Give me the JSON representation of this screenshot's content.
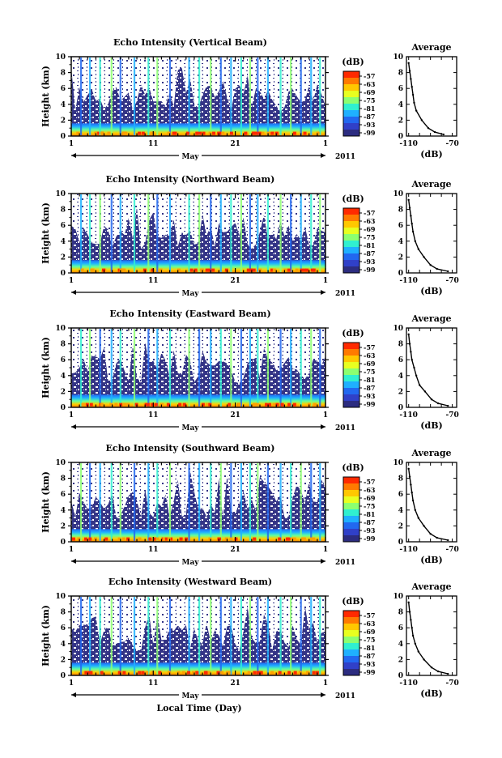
{
  "figure": {
    "bottom_xlabel": "Local Time (Day)",
    "year": "2011",
    "month": "May"
  },
  "colorbar": {
    "unit": "(dB)",
    "ticks": [
      "-57",
      "-63",
      "-69",
      "-75",
      "-81",
      "-87",
      "-93",
      "-99"
    ],
    "colors": [
      "#ff2a00",
      "#ff7a00",
      "#ffc800",
      "#e8ff20",
      "#8cff70",
      "#30f0d0",
      "#1fb0ff",
      "#2268f0",
      "#3040c8",
      "#2c2c80"
    ]
  },
  "chart_data": [
    {
      "type": "heatmap",
      "title": "Echo Intensity (Vertical Beam)",
      "ylabel": "Height (km)",
      "xlabel": "May",
      "x_ticks": [
        "1",
        "11",
        "21",
        "1"
      ],
      "y_ticks": [
        "0",
        "2",
        "4",
        "6",
        "8",
        "10"
      ],
      "xlim": [
        1,
        32
      ],
      "ylim": [
        0,
        10
      ],
      "average_profile": {
        "title": "Average",
        "xlabel": "(dB)",
        "x_ticks": [
          "-110",
          "-70"
        ],
        "y_ticks": [
          "0",
          "2",
          "4",
          "6",
          "8",
          "10"
        ],
        "xlim": [
          -112,
          -66
        ],
        "ylim": [
          0,
          10
        ],
        "points": [
          [
            -78,
            0.2
          ],
          [
            -86,
            0.5
          ],
          [
            -92,
            1.0
          ],
          [
            -98,
            2.0
          ],
          [
            -103,
            3.2
          ],
          [
            -105,
            4.2
          ],
          [
            -106,
            5.2
          ],
          [
            -107,
            6.2
          ],
          [
            -108,
            7.2
          ],
          [
            -109,
            8.2
          ],
          [
            -110,
            9.2
          ]
        ]
      }
    },
    {
      "type": "heatmap",
      "title": "Echo Intensity (Northward Beam)",
      "ylabel": "Height (km)",
      "xlabel": "May",
      "x_ticks": [
        "1",
        "11",
        "21",
        "1"
      ],
      "y_ticks": [
        "0",
        "2",
        "4",
        "6",
        "8",
        "10"
      ],
      "xlim": [
        1,
        32
      ],
      "ylim": [
        0,
        10
      ],
      "average_profile": {
        "title": "Average",
        "xlabel": "(dB)",
        "x_ticks": [
          "-110",
          "-70"
        ],
        "y_ticks": [
          "0",
          "2",
          "4",
          "6",
          "8",
          "10"
        ],
        "xlim": [
          -112,
          -66
        ],
        "ylim": [
          0,
          10
        ],
        "points": [
          [
            -74,
            0.2
          ],
          [
            -84,
            0.5
          ],
          [
            -90,
            1.0
          ],
          [
            -96,
            2.0
          ],
          [
            -101,
            3.0
          ],
          [
            -104,
            4.0
          ],
          [
            -106,
            5.2
          ],
          [
            -107,
            6.2
          ],
          [
            -108,
            7.2
          ],
          [
            -109,
            8.2
          ],
          [
            -110,
            9.2
          ]
        ]
      }
    },
    {
      "type": "heatmap",
      "title": "Echo Intensity (Eastward Beam)",
      "ylabel": "Height (km)",
      "xlabel": "May",
      "x_ticks": [
        "1",
        "11",
        "21",
        "1"
      ],
      "y_ticks": [
        "0",
        "2",
        "4",
        "6",
        "8",
        "10"
      ],
      "xlim": [
        1,
        32
      ],
      "ylim": [
        0,
        10
      ],
      "average_profile": {
        "title": "Average",
        "xlabel": "(dB)",
        "x_ticks": [
          "-110",
          "-70"
        ],
        "y_ticks": [
          "0",
          "2",
          "4",
          "6",
          "8",
          "10"
        ],
        "xlim": [
          -112,
          -66
        ],
        "ylim": [
          0,
          10
        ],
        "points": [
          [
            -74,
            0.2
          ],
          [
            -83,
            0.5
          ],
          [
            -89,
            1.0
          ],
          [
            -95,
            2.0
          ],
          [
            -100,
            2.8
          ],
          [
            -103,
            4.0
          ],
          [
            -105,
            5.0
          ],
          [
            -107,
            6.0
          ],
          [
            -108,
            7.0
          ],
          [
            -109,
            8.0
          ],
          [
            -110,
            9.2
          ]
        ]
      }
    },
    {
      "type": "heatmap",
      "title": "Echo Intensity (Southward Beam)",
      "ylabel": "Height (km)",
      "xlabel": "May",
      "x_ticks": [
        "1",
        "11",
        "21",
        "1"
      ],
      "y_ticks": [
        "0",
        "2",
        "4",
        "6",
        "8",
        "10"
      ],
      "xlim": [
        1,
        32
      ],
      "ylim": [
        0,
        10
      ],
      "average_profile": {
        "title": "Average",
        "xlabel": "(dB)",
        "x_ticks": [
          "-110",
          "-70"
        ],
        "y_ticks": [
          "0",
          "2",
          "4",
          "6",
          "8",
          "10"
        ],
        "xlim": [
          -112,
          -66
        ],
        "ylim": [
          0,
          10
        ],
        "points": [
          [
            -74,
            0.2
          ],
          [
            -84,
            0.5
          ],
          [
            -90,
            1.0
          ],
          [
            -96,
            2.0
          ],
          [
            -101,
            3.0
          ],
          [
            -104,
            4.0
          ],
          [
            -106,
            5.2
          ],
          [
            -107,
            6.2
          ],
          [
            -108,
            7.2
          ],
          [
            -109,
            8.2
          ],
          [
            -110,
            9.2
          ]
        ]
      }
    },
    {
      "type": "heatmap",
      "title": "Echo Intensity (Westward Beam)",
      "ylabel": "Height (km)",
      "xlabel": "May",
      "x_ticks": [
        "1",
        "11",
        "21",
        "1"
      ],
      "y_ticks": [
        "0",
        "2",
        "4",
        "6",
        "8",
        "10"
      ],
      "xlim": [
        1,
        32
      ],
      "ylim": [
        0,
        10
      ],
      "average_profile": {
        "title": "Average",
        "xlabel": "(dB)",
        "x_ticks": [
          "-110",
          "-70"
        ],
        "y_ticks": [
          "0",
          "2",
          "4",
          "6",
          "8",
          "10"
        ],
        "xlim": [
          -112,
          -66
        ],
        "ylim": [
          0,
          10
        ],
        "points": [
          [
            -74,
            0.2
          ],
          [
            -83,
            0.5
          ],
          [
            -89,
            1.0
          ],
          [
            -96,
            2.0
          ],
          [
            -101,
            3.0
          ],
          [
            -104,
            4.0
          ],
          [
            -106,
            5.0
          ],
          [
            -107,
            6.0
          ],
          [
            -108,
            7.0
          ],
          [
            -109,
            8.0
          ],
          [
            -110,
            9.2
          ]
        ]
      }
    }
  ]
}
